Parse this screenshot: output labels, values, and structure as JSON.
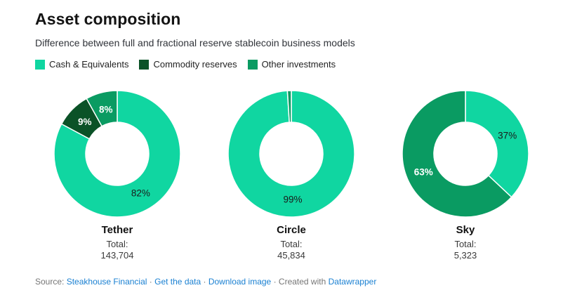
{
  "header": {
    "title": "Asset composition",
    "subtitle": "Difference between full and fractional reserve stablecoin business models"
  },
  "legend": {
    "items": [
      {
        "label": "Cash & Equivalents",
        "color": "#10d6a1"
      },
      {
        "label": "Commodity reserves",
        "color": "#0b5227"
      },
      {
        "label": "Other investments",
        "color": "#0a9b62"
      }
    ]
  },
  "chart_data": {
    "type": "pie",
    "variant": "donut",
    "legend_position": "top",
    "title": "Asset composition",
    "subtitle": "Difference between full and fractional reserve stablecoin business models",
    "categories": [
      "Cash & Equivalents",
      "Commodity reserves",
      "Other investments"
    ],
    "pies": [
      {
        "name": "Tether",
        "total_label": "Total:",
        "total": 143704,
        "total_display": "143,704",
        "slices": [
          {
            "category": "Cash & Equivalents",
            "pct": 82,
            "label": "82%",
            "label_color": "#1a1a1a"
          },
          {
            "category": "Commodity reserves",
            "pct": 9,
            "label": "9%",
            "label_color": "#ffffff"
          },
          {
            "category": "Other investments",
            "pct": 8,
            "label": "8%",
            "label_color": "#ffffff"
          }
        ]
      },
      {
        "name": "Circle",
        "total_label": "Total:",
        "total": 45834,
        "total_display": "45,834",
        "slices": [
          {
            "category": "Cash & Equivalents",
            "pct": 99,
            "label": "99%",
            "label_color": "#1a1a1a"
          },
          {
            "category": "Other investments",
            "pct": 1,
            "label": "",
            "label_color": "#ffffff"
          }
        ]
      },
      {
        "name": "Sky",
        "total_label": "Total:",
        "total": 5323,
        "total_display": "5,323",
        "slices": [
          {
            "category": "Cash & Equivalents",
            "pct": 37,
            "label": "37%",
            "label_color": "#1a1a1a"
          },
          {
            "category": "Other investments",
            "pct": 63,
            "label": "63%",
            "label_color": "#ffffff"
          }
        ]
      }
    ]
  },
  "footer": {
    "parts": [
      {
        "text": "Source: "
      },
      {
        "text": "Steakhouse Financial"
      },
      {
        "text": " · "
      },
      {
        "text": "Get the data"
      },
      {
        "text": " · "
      },
      {
        "text": "Download image"
      },
      {
        "text": " · "
      },
      {
        "text": "Created with "
      },
      {
        "text": "Datawrapper"
      }
    ]
  }
}
